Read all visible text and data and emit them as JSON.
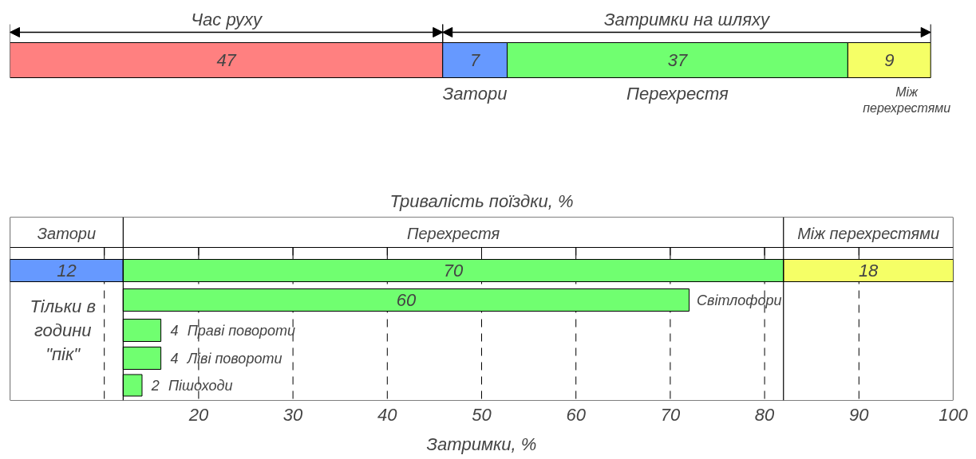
{
  "chart_data": [
    {
      "type": "bar",
      "orientation": "horizontal",
      "stacked": true,
      "categories": [
        null
      ],
      "data_labels": true,
      "tick_labels": false,
      "annotations": [
        "Затримки на шляху"
      ],
      "series": [
        {
          "name": "Час руху",
          "color": "#ff8080",
          "values": [
            47
          ]
        },
        {
          "name": "Затори",
          "color": "#6699ff",
          "values": [
            7
          ]
        },
        {
          "name": "Перехрестя",
          "color": "#70ff70",
          "values": [
            37
          ]
        },
        {
          "name": "Між перехрестями",
          "color": "#f5ff66",
          "values": [
            9
          ]
        }
      ]
    },
    {
      "type": "bar",
      "orientation": "horizontal",
      "title": "Тривалість поїздки, %",
      "xlabel": "Затримки, %",
      "categories": [
        null,
        "Світлофори",
        "Праві повороти",
        "Ліві повороти",
        "Пішоходи"
      ],
      "xlim": [
        0,
        100
      ],
      "xticks": [
        {
          "value": 10,
          "label": null
        },
        20,
        30,
        40,
        50,
        60,
        70,
        80,
        90,
        100
      ],
      "grid": "x",
      "data_labels": true,
      "ref_lines": [
        {
          "axis": "x",
          "value": 12
        },
        {
          "axis": "x",
          "value": 82
        }
      ],
      "annotations": [
        "Тільки в години \"пік\""
      ],
      "series": [
        {
          "name": "Затори",
          "color": "#6699ff",
          "values": [
            12,
            null,
            null,
            null,
            null
          ],
          "base": [
            0,
            null,
            null,
            null,
            null
          ]
        },
        {
          "name": "Перехрестя",
          "color": "#70ff70",
          "values": [
            70,
            60,
            4,
            4,
            2
          ],
          "base": [
            12,
            12,
            12,
            12,
            12
          ]
        },
        {
          "name": "Між перехрестями",
          "color": "#f5ff66",
          "values": [
            18,
            null,
            null,
            null,
            null
          ],
          "base": [
            82,
            null,
            null,
            null,
            null
          ]
        }
      ]
    }
  ]
}
